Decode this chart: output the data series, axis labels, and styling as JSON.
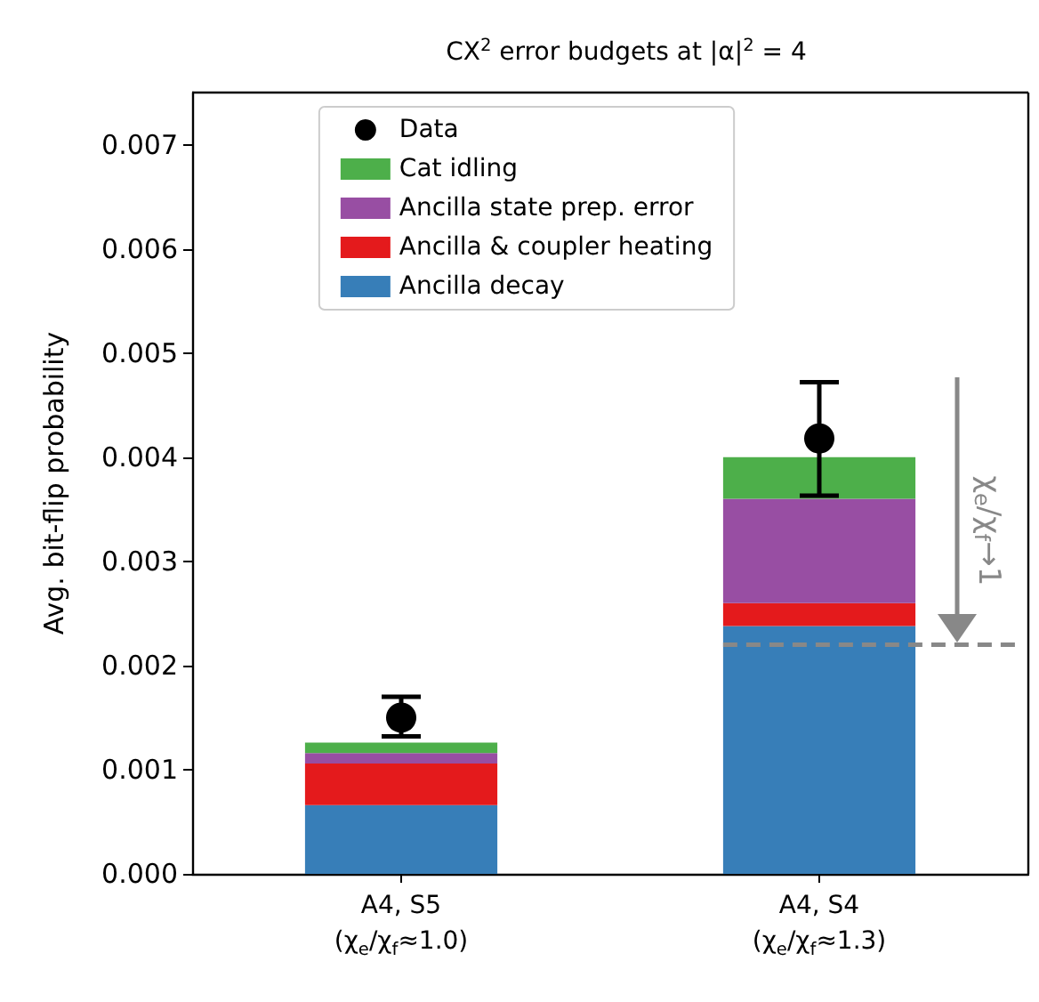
{
  "chart_data": {
    "type": "bar",
    "title": "CX$^{2}$ error budgets at |α|$^{2}$ = 4",
    "ylabel": "Avg. bit-flip probability",
    "categories": [
      "A4, S5\n(χ$_{e}$/χ$_{f}$≈1.0)",
      "A4, S4\n(χ$_{e}$/χ$_{f}$≈1.3)"
    ],
    "stacked": true,
    "series": [
      {
        "name": "Ancilla decay",
        "color": "#377eb8",
        "values": [
          0.00066,
          0.00238
        ]
      },
      {
        "name": "Ancilla & coupler heating",
        "color": "#e41a1c",
        "values": [
          0.0004,
          0.00022
        ]
      },
      {
        "name": "Ancilla state prep. error",
        "color": "#984ea3",
        "values": [
          0.0001,
          0.001
        ]
      },
      {
        "name": "Cat idling",
        "color": "#4daf4a",
        "values": [
          0.0001,
          0.0004
        ]
      },
      {
        "name": "Data",
        "type": "scatter",
        "color": "#000000",
        "marker": "circle",
        "x": [
          "A4, S5\n(χ$_{e}$/χ$_{f}$≈1.0)",
          "A4, S4\n(χ$_{e}$/χ$_{f}$≈1.3)"
        ],
        "values": [
          0.0015,
          0.00418
        ],
        "errors": [
          [
            0.00132,
            0.0017
          ],
          [
            0.00363,
            0.00472
          ]
        ]
      }
    ],
    "ylim": [
      0,
      0.0075
    ],
    "yticks": [
      {
        "value": 0,
        "label": "0.000"
      },
      {
        "value": 0.001,
        "label": "0.001"
      },
      {
        "value": 0.002,
        "label": "0.002"
      },
      {
        "value": 0.003,
        "label": "0.003"
      },
      {
        "value": 0.004,
        "label": "0.004"
      },
      {
        "value": 0.005,
        "label": "0.005"
      },
      {
        "value": 0.006,
        "label": "0.006"
      },
      {
        "value": 0.007,
        "label": "0.007"
      }
    ],
    "ref_lines": [
      {
        "axis": "y",
        "value": 0.0022,
        "label": "χ$_{e}$/χ$_{f}$→1",
        "color": "#888888",
        "line_style": "dashed"
      }
    ],
    "grid": false,
    "legend": "top"
  }
}
